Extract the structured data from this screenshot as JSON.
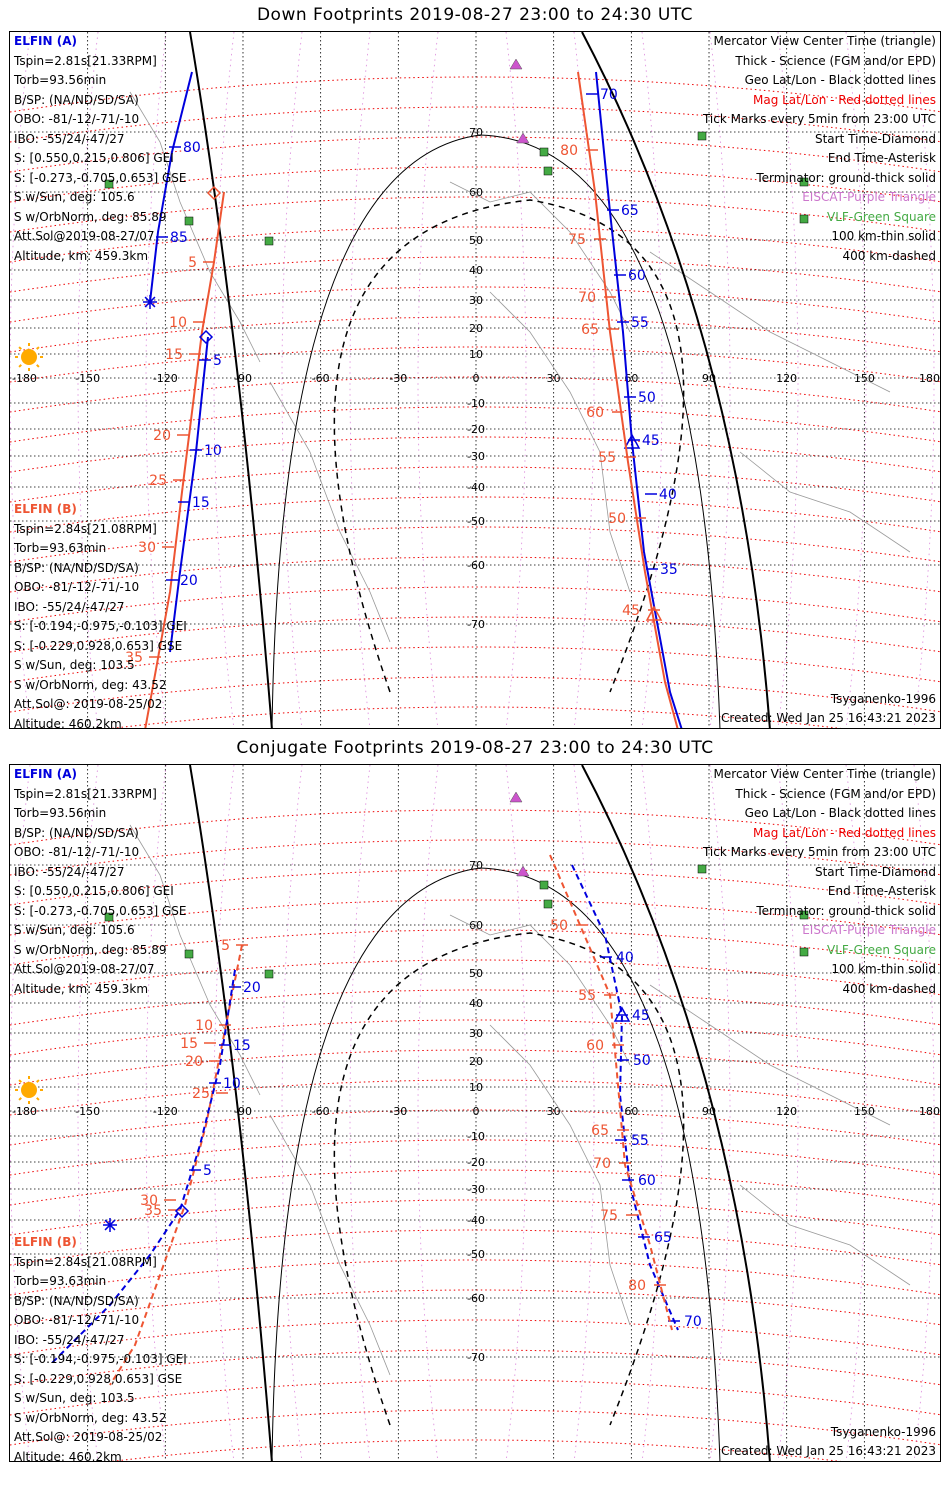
{
  "panels": [
    {
      "title": "Down Footprints 2019-08-27 23:00 to 24:30 UTC",
      "elfin_a": {
        "name": "ELFIN (A)",
        "lines": [
          "Tspin=2.81s[21.33RPM]",
          "Torb=93.56min",
          "B/SP: (NA/ND/SD/SA)",
          "OBO: -81/-12/-71/-10",
          "IBO: -55/24/-47/27",
          "S: [0.550,0.215,0.806] GEI",
          "S: [-0.273,-0.705,0.653] GSE",
          "S w/Sun, deg: 105.6",
          "S w/OrbNorm, deg: 85.89",
          "Att.Sol@2019-08-27/07",
          "Altitude, km: 459.3km"
        ]
      },
      "elfin_b": {
        "name": "ELFIN (B)",
        "lines": [
          "Tspin=2.84s[21.08RPM]",
          "Torb=93.63min",
          "B/SP: (NA/ND/SD/SA)",
          "OBO: -81/-12/-71/-10",
          "IBO: -55/24/-47/27",
          "S: [-0.194,-0.975,-0.103] GEI",
          "S: [-0.229,0.928,0.653] GSE",
          "S w/Sun, deg: 103.5",
          "S w/OrbNorm, deg: 43.52",
          "Att.Sol@: 2019-08-25/02",
          "Altitude: 460.2km"
        ]
      },
      "track_a1_ticks": [
        "80",
        "85"
      ],
      "track_b1_ticks": [
        "5",
        "10",
        "15",
        "20",
        "25",
        "30",
        "35"
      ],
      "track_a1b_ticks": [
        "5",
        "10",
        "15",
        "20"
      ],
      "track_a2_ticks": [
        "70",
        "65",
        "60",
        "55",
        "50",
        "45",
        "40",
        "35"
      ],
      "track_b2_ticks": [
        "80",
        "75",
        "70",
        "65",
        "60",
        "55",
        "50",
        "45"
      ]
    },
    {
      "title": "Conjugate Footprints 2019-08-27 23:00 to 24:30 UTC",
      "elfin_a": {
        "name": "ELFIN (A)",
        "lines": [
          "Tspin=2.81s[21.33RPM]",
          "Torb=93.56min",
          "B/SP: (NA/ND/SD/SA)",
          "OBO: -81/-12/-71/-10",
          "IBO: -55/24/-47/27",
          "S: [0.550,0.215,0.806] GEI",
          "S: [-0.273,-0.705,0.653] GSE",
          "S w/Sun, deg: 105.6",
          "S w/OrbNorm, deg: 85.89",
          "Att.Sol@2019-08-27/07",
          "Altitude, km: 459.3km"
        ]
      },
      "elfin_b": {
        "name": "ELFIN (B)",
        "lines": [
          "Tspin=2.84s[21.08RPM]",
          "Torb=93.63min",
          "B/SP: (NA/ND/SD/SA)",
          "OBO: -81/-12/-71/-10",
          "IBO: -55/24/-47/27",
          "S: [-0.194,-0.975,-0.103] GEI",
          "S: [-0.229,0.928,0.653] GSE",
          "S w/Sun, deg: 103.5",
          "S w/OrbNorm, deg: 43.52",
          "Att.Sol@: 2019-08-25/02",
          "Altitude: 460.2km"
        ]
      },
      "track_b1_ticks": [
        "5",
        "10",
        "15",
        "20",
        "25",
        "30",
        "35"
      ],
      "track_a1_ticks": [
        "5",
        "10",
        "15",
        "20"
      ],
      "track_a2_ticks": [
        "40",
        "45",
        "50",
        "55",
        "60",
        "65",
        "70"
      ],
      "track_b2_ticks": [
        "50",
        "55",
        "60",
        "65",
        "70",
        "75",
        "80"
      ]
    }
  ],
  "legend": {
    "lines": [
      {
        "text": "Mercator View Center Time (triangle)",
        "color": "#000000"
      },
      {
        "text": "Thick - Science (FGM and/or EPD)",
        "color": "#000000"
      },
      {
        "text": "Geo Lat/Lon - Black dotted lines",
        "color": "#000000"
      },
      {
        "text": "Mag Lat/Lon - Red dotted lines",
        "color": "#ee0000"
      },
      {
        "text": "Tick Marks every 5min from 23:00 UTC",
        "color": "#000000"
      },
      {
        "text": "Start Time-Diamond",
        "color": "#000000"
      },
      {
        "text": "End Time-Asterisk",
        "color": "#000000"
      },
      {
        "text": "Terminator: ground-thick solid",
        "color": "#000000"
      },
      {
        "text": "EISCAT-Purple Triangle",
        "color": "#cc77cc"
      },
      {
        "text": "VLF-Green Square",
        "color": "#44aa44"
      },
      {
        "text": "100 km-thin solid",
        "color": "#000000"
      },
      {
        "text": "400 km-dashed",
        "color": "#000000"
      }
    ]
  },
  "model": "Tsyganenko-1996",
  "created": "Created: Wed Jan 25 16:43:21 2023",
  "lon_ticks": [
    "-180",
    "-150",
    "-120",
    "-90",
    "-60",
    "-30",
    "0",
    "30",
    "60",
    "90",
    "120",
    "150",
    "180"
  ],
  "lat_ticks": [
    "70",
    "60",
    "50",
    "40",
    "30",
    "20",
    "10",
    "0",
    "-10",
    "-20",
    "-30",
    "-40",
    "-50",
    "-60",
    "-70"
  ],
  "colors": {
    "elfin_a": "#0000dd",
    "elfin_b": "#ee5533",
    "mag_grid": "#ee0000",
    "geo_grid": "#000000",
    "eiscat": "#cc55cc",
    "vlf": "#44aa44",
    "sun": "#ffaa00"
  }
}
